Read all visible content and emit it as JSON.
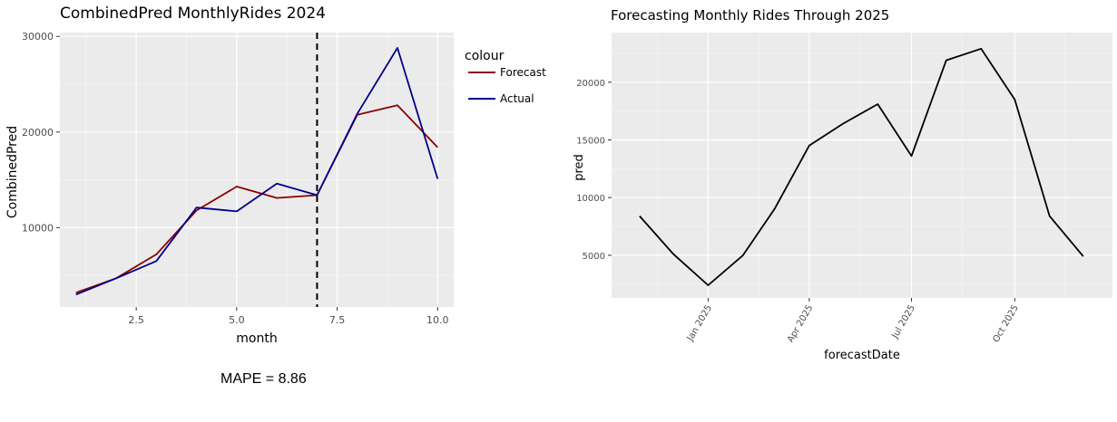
{
  "chart_data": [
    {
      "type": "line",
      "title": "CombinedPred MonthlyRides 2024",
      "xlabel": "month",
      "ylabel": "CombinedPred",
      "xlim": [
        0.6,
        10.4
      ],
      "ylim": [
        1700,
        30400
      ],
      "x_ticks": [
        2.5,
        5.0,
        7.5,
        10.0
      ],
      "x_tick_labels": [
        "2.5",
        "5.0",
        "7.5",
        "10.0"
      ],
      "y_ticks": [
        10000,
        20000,
        30000
      ],
      "y_tick_labels": [
        "10000",
        "20000",
        "30000"
      ],
      "x": [
        1,
        2,
        3,
        4,
        5,
        6,
        7,
        8,
        9,
        10
      ],
      "series": [
        {
          "name": "Forecast",
          "color": "#8b0000",
          "values": [
            3200,
            4700,
            7200,
            11800,
            14300,
            13100,
            13400,
            21800,
            22800,
            18400
          ]
        },
        {
          "name": "Actual",
          "color": "#00008b",
          "values": [
            3000,
            4700,
            6500,
            12100,
            11700,
            14600,
            13400,
            21900,
            28800,
            15100
          ]
        }
      ],
      "vline_x": 7,
      "legend_title": "colour",
      "legend_position": "right",
      "grid": true,
      "annotation": "MAPE = 8.86"
    },
    {
      "type": "line",
      "title": "Forecasting Monthly Rides Through 2025",
      "xlabel": "forecastDate",
      "ylabel": "pred",
      "xlim": [
        "2024-10-07",
        "2025-12-27"
      ],
      "ylim": [
        1300,
        24300
      ],
      "x_ticks": [
        "2025-01-01",
        "2025-04-01",
        "2025-07-01",
        "2025-10-01"
      ],
      "x_tick_labels": [
        "Jan 2025",
        "Apr 2025",
        "Jul 2025",
        "Oct 2025"
      ],
      "y_ticks": [
        5000,
        10000,
        15000,
        20000
      ],
      "y_tick_labels": [
        "5000",
        "10000",
        "15000",
        "20000"
      ],
      "x": [
        "2024-11-01",
        "2024-12-01",
        "2025-01-01",
        "2025-02-01",
        "2025-03-01",
        "2025-04-01",
        "2025-05-01",
        "2025-06-01",
        "2025-07-01",
        "2025-08-01",
        "2025-09-01",
        "2025-10-01",
        "2025-11-01",
        "2025-12-01"
      ],
      "series": [
        {
          "color": "#000000",
          "values": [
            8400,
            5100,
            2400,
            5000,
            9000,
            14500,
            16400,
            18100,
            13600,
            21900,
            22900,
            18500,
            8400,
            4900
          ]
        }
      ],
      "grid": true
    }
  ]
}
